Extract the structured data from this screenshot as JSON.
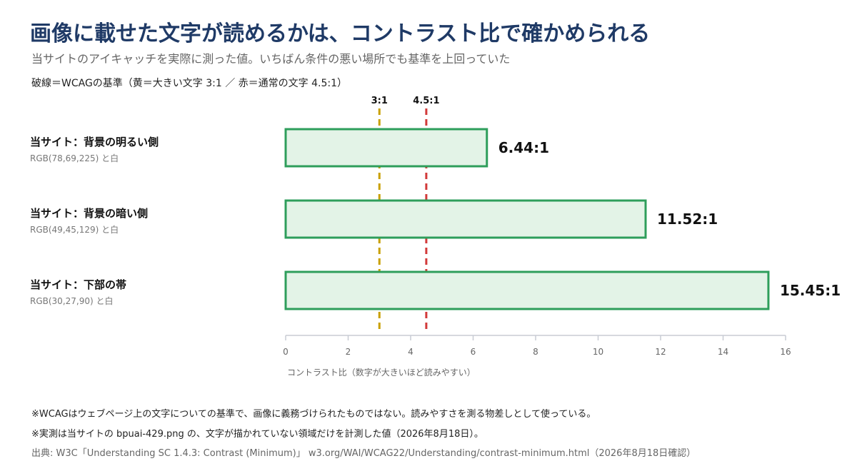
{
  "header": {
    "title": "画像に載せた文字が読めるかは、コントラスト比で確かめられる",
    "subtitle": "当サイトのアイキャッチを実際に測った値。いちばん条件の悪い場所でも基準を上回っていた",
    "legend_note": "破線＝WCAGの基準（黄＝大きい文字 3:1 ／ 赤＝通常の文字 4.5:1）"
  },
  "chart_data": {
    "type": "bar",
    "orientation": "horizontal",
    "categories": [
      {
        "name": "当サイト：背景の明るい側",
        "detail": "RGB(78,69,225) と白"
      },
      {
        "name": "当サイト：背景の暗い側",
        "detail": "RGB(49,45,129) と白"
      },
      {
        "name": "当サイト：下部の帯",
        "detail": "RGB(30,27,90) と白"
      }
    ],
    "values": [
      6.44,
      11.52,
      15.45
    ],
    "value_labels": [
      "6.44:1",
      "11.52:1",
      "15.45:1"
    ],
    "xlim": [
      0,
      16
    ],
    "xticks": [
      0,
      2,
      4,
      6,
      8,
      10,
      12,
      14,
      16
    ],
    "xlabel": "コントラスト比（数字が大きいほど読みやすい）",
    "reference_lines": [
      {
        "value": 3,
        "label": "3:1",
        "color": "#c9a000"
      },
      {
        "value": 4.5,
        "label": "4.5:1",
        "color": "#d23a3a"
      }
    ],
    "bar_fill": "#e3f3e7",
    "bar_stroke": "#2e9e5b",
    "grid": false
  },
  "notes": [
    "※WCAGはウェブページ上の文字についての基準で、画像に義務づけられたものではない。読みやすさを測る物差しとして使っている。",
    "※実測は当サイトの bpuai-429.png の、文字が描かれていない領域だけを計測した値（2026年8月18日）。"
  ],
  "source": "出典: W3C「Understanding SC 1.4.3: Contrast (Minimum)」 w3.org/WAI/WCAG22/Understanding/contrast-minimum.html（2026年8月18日確認）"
}
